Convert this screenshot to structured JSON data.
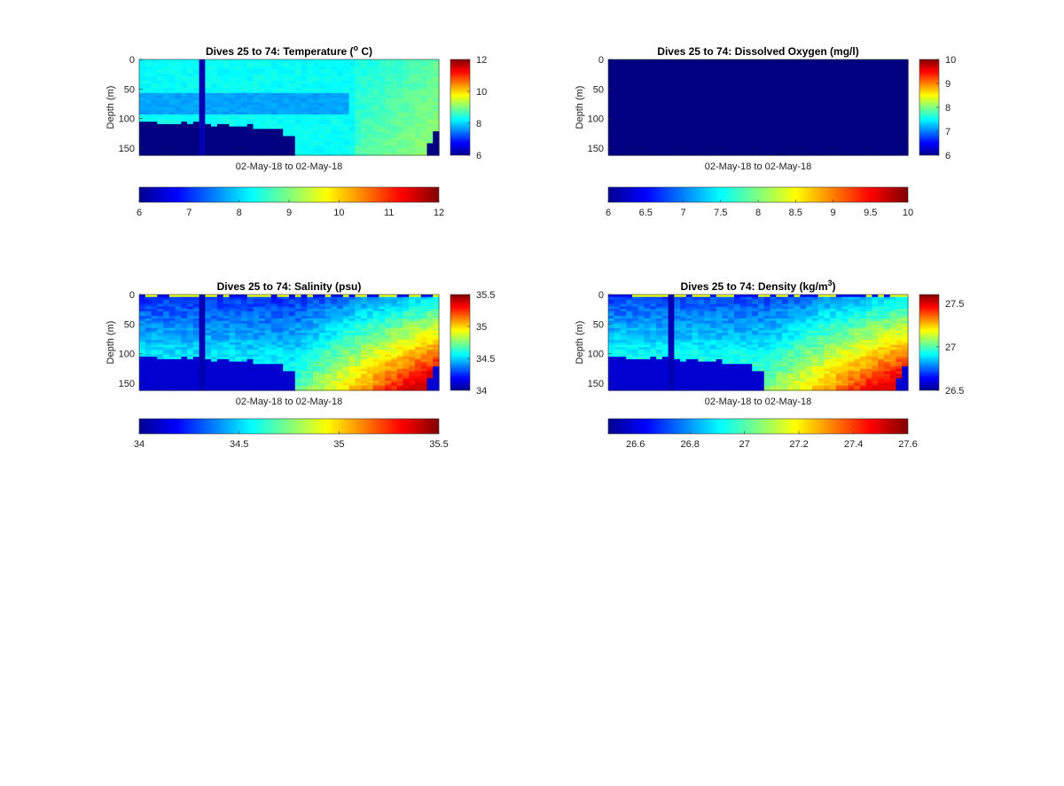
{
  "chart_data": [
    {
      "type": "heatmap",
      "title": "Dives 25 to 74: Temperature (",
      "title_sup": "o",
      "title_end": " C)",
      "xlabel": "02-May-18 to 02-May-18",
      "ylabel": "Depth (m)",
      "ylim": [
        0,
        162
      ],
      "y_ticks": [
        0,
        50,
        100,
        150
      ],
      "y_tick_labels": [
        "0",
        "50",
        "100",
        "150"
      ],
      "side_colorbar_ticks": [
        6,
        8,
        10,
        12
      ],
      "side_colorbar_tick_labels": [
        "6",
        "8",
        "10",
        "12"
      ],
      "bottom_colorbar_ticks": [
        6,
        7,
        8,
        9,
        10,
        11,
        12
      ],
      "bottom_colorbar_tick_labels": [
        "6",
        "7",
        "8",
        "9",
        "10",
        "11",
        "12"
      ],
      "clim": [
        6,
        12
      ],
      "columns": 50,
      "colormap": "jet",
      "approx_values": {
        "surface_to_mixed": 8.0,
        "thermocline_band": 7.6,
        "deep_water_east": 8.4,
        "masked_background": 6.0
      }
    },
    {
      "type": "heatmap",
      "title": "Dives 25 to 74: Dissolved Oxygen (mg/l)",
      "title_sup": "",
      "title_end": "",
      "xlabel": "02-May-18 to 02-May-18",
      "ylabel": "Depth (m)",
      "ylim": [
        0,
        162
      ],
      "y_ticks": [
        0,
        50,
        100,
        150
      ],
      "y_tick_labels": [
        "0",
        "50",
        "100",
        "150"
      ],
      "side_colorbar_ticks": [
        6,
        7,
        8,
        9,
        10
      ],
      "side_colorbar_tick_labels": [
        "6",
        "7",
        "8",
        "9",
        "10"
      ],
      "bottom_colorbar_ticks": [
        6,
        6.5,
        7,
        7.5,
        8,
        8.5,
        9,
        9.5,
        10
      ],
      "bottom_colorbar_tick_labels": [
        "6",
        "6.5",
        "7",
        "7.5",
        "8",
        "8.5",
        "9",
        "9.5",
        "10"
      ],
      "clim": [
        6,
        10
      ],
      "columns": 50,
      "colormap": "jet",
      "approx_values": {
        "all_cells": 6.0
      }
    },
    {
      "type": "heatmap",
      "title": "Dives 25 to 74: Salinity (psu)",
      "title_sup": "",
      "title_end": "",
      "xlabel": "02-May-18 to 02-May-18",
      "ylabel": "Depth (m)",
      "ylim": [
        0,
        162
      ],
      "y_ticks": [
        0,
        50,
        100,
        150
      ],
      "y_tick_labels": [
        "0",
        "50",
        "100",
        "150"
      ],
      "side_colorbar_ticks": [
        34,
        34.5,
        35,
        35.5
      ],
      "side_colorbar_tick_labels": [
        "34",
        "34.5",
        "35",
        "35.5"
      ],
      "bottom_colorbar_ticks": [
        34,
        34.5,
        35,
        35.5
      ],
      "bottom_colorbar_tick_labels": [
        "34",
        "34.5",
        "35",
        "35.5"
      ],
      "clim": [
        34,
        35.5
      ],
      "columns": 50,
      "colormap": "jet",
      "approx_values": {
        "surface": 34.15,
        "mid_depth": 34.6,
        "deep_east": 35.25,
        "masked_background": 34.0
      }
    },
    {
      "type": "heatmap",
      "title": "Dives 25 to 74: Density (kg/m",
      "title_sup": "3",
      "title_end": ")",
      "xlabel": "02-May-18 to 02-May-18",
      "ylabel": "Depth (m)",
      "ylim": [
        0,
        162
      ],
      "y_ticks": [
        0,
        50,
        100,
        150
      ],
      "y_tick_labels": [
        "0",
        "50",
        "100",
        "150"
      ],
      "side_colorbar_ticks": [
        26.5,
        27,
        27.5
      ],
      "side_colorbar_tick_labels": [
        "26.5",
        "27",
        "27.5"
      ],
      "bottom_colorbar_ticks": [
        26.5,
        26.6,
        26.8,
        27,
        27.2,
        27.4,
        27.6
      ],
      "bottom_colorbar_tick_labels": [
        "",
        "26.6",
        "26.8",
        "27",
        "27.2",
        "27.4",
        "27.6"
      ],
      "clim": [
        26.5,
        27.6
      ],
      "columns": 50,
      "colormap": "jet",
      "approx_values": {
        "surface": 26.6,
        "mid_depth": 26.95,
        "deep_east": 27.3,
        "masked_background": 26.5
      }
    }
  ]
}
